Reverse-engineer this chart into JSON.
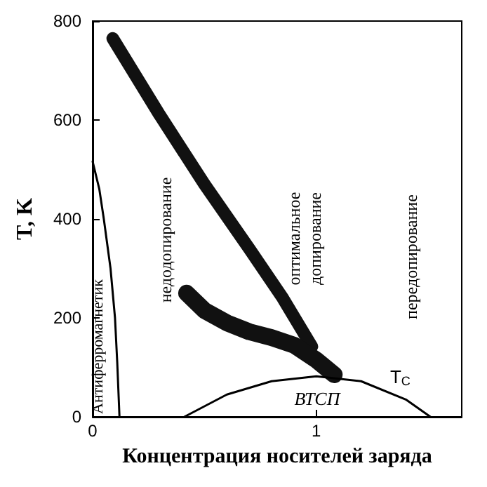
{
  "chart_data": {
    "type": "line",
    "xlabel": "Концентрация носителей заряда",
    "ylabel": "T, K",
    "xlim": [
      0,
      1.65
    ],
    "xticks": [
      0,
      1
    ],
    "ylim": [
      0,
      800
    ],
    "yticks": [
      0,
      200,
      400,
      600,
      800
    ],
    "grid": false,
    "marker": "none",
    "line_style": "solid",
    "series": [
      {
        "color": "#000000",
        "x": [
          0,
          0.03,
          0.05,
          0.08,
          0.1,
          0.11,
          0.12
        ],
        "values": [
          516,
          460,
          400,
          300,
          200,
          110,
          0
        ]
      },
      {
        "color": "#111111",
        "x": [
          0.09,
          0.3,
          0.5,
          0.7,
          0.85,
          0.98
        ],
        "values": [
          765,
          610,
          470,
          340,
          240,
          142
        ]
      },
      {
        "color": "#111111",
        "x": [
          0.42,
          0.5,
          0.6,
          0.7,
          0.8,
          0.9,
          1.0,
          1.08
        ],
        "values": [
          250,
          215,
          190,
          172,
          160,
          145,
          115,
          85
        ]
      },
      {
        "color": "#000000",
        "x": [
          0.41,
          0.6,
          0.8,
          1.0,
          1.2,
          1.4,
          1.51
        ],
        "values": [
          0,
          45,
          72,
          82,
          72,
          35,
          0
        ]
      }
    ],
    "annotations": [
      "Антиферромагнетик",
      "недодопирование",
      "оптимальное\nдопирование",
      "передопирование",
      "ВТСП",
      {
        "text": "T$_{C}$",
        "x": 1.33,
        "y": 60
      }
    ]
  }
}
